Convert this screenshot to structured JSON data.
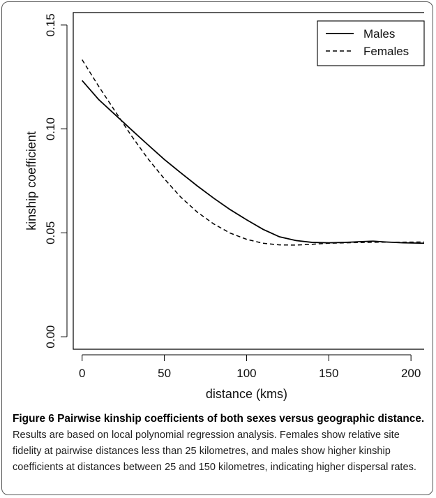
{
  "chart_data": {
    "type": "line",
    "title": "",
    "xlabel": "distance (kms)",
    "ylabel": "kinship coefficient",
    "xlim": [
      -5.4,
      208
    ],
    "ylim": [
      -0.006,
      0.156
    ],
    "x_ticks": [
      0,
      50,
      100,
      150,
      200
    ],
    "y_ticks": [
      0.0,
      0.05,
      0.1,
      0.15
    ],
    "x_tick_labels": [
      "0",
      "50",
      "100",
      "150",
      "200"
    ],
    "y_tick_labels": [
      "0.00",
      "0.05",
      "0.10",
      "0.15"
    ],
    "legend": {
      "position": "top-right",
      "entries": [
        "Males",
        "Females"
      ]
    },
    "grid": false,
    "series": [
      {
        "name": "Males",
        "style": "solid",
        "color": "#000000",
        "points": [
          [
            0,
            0.1233
          ],
          [
            10,
            0.1142
          ],
          [
            20,
            0.1069
          ],
          [
            30,
            0.0996
          ],
          [
            40,
            0.0924
          ],
          [
            50,
            0.0853
          ],
          [
            60,
            0.0789
          ],
          [
            70,
            0.0726
          ],
          [
            80,
            0.0667
          ],
          [
            90,
            0.0612
          ],
          [
            100,
            0.0563
          ],
          [
            110,
            0.0517
          ],
          [
            120,
            0.0481
          ],
          [
            130,
            0.0463
          ],
          [
            140,
            0.0454
          ],
          [
            150,
            0.0452
          ],
          [
            160,
            0.0454
          ],
          [
            170,
            0.0458
          ],
          [
            177,
            0.046
          ],
          [
            185,
            0.0456
          ],
          [
            195,
            0.0452
          ],
          [
            208,
            0.045
          ]
        ]
      },
      {
        "name": "Females",
        "style": "dashed",
        "color": "#000000",
        "points": [
          [
            0,
            0.1333
          ],
          [
            10,
            0.1206
          ],
          [
            20,
            0.1086
          ],
          [
            30,
            0.0967
          ],
          [
            40,
            0.0857
          ],
          [
            50,
            0.076
          ],
          [
            60,
            0.0672
          ],
          [
            70,
            0.06
          ],
          [
            80,
            0.0543
          ],
          [
            90,
            0.0499
          ],
          [
            100,
            0.0469
          ],
          [
            110,
            0.045
          ],
          [
            120,
            0.0442
          ],
          [
            130,
            0.0441
          ],
          [
            140,
            0.0445
          ],
          [
            150,
            0.045
          ],
          [
            160,
            0.0452
          ],
          [
            170,
            0.0454
          ],
          [
            180,
            0.0455
          ],
          [
            190,
            0.0455
          ],
          [
            208,
            0.0456
          ]
        ]
      }
    ]
  },
  "caption": {
    "bold": "Figure 6 Pairwise kinship coefficients of both sexes versus geographic distance.",
    "text": " Results are based on local polynomial regression analysis. Females show relative site fidelity at pairwise distances less than 25 kilometres, and males show higher kinship coefficients at distances between 25 and 150 kilometres, indicating higher dispersal rates."
  }
}
